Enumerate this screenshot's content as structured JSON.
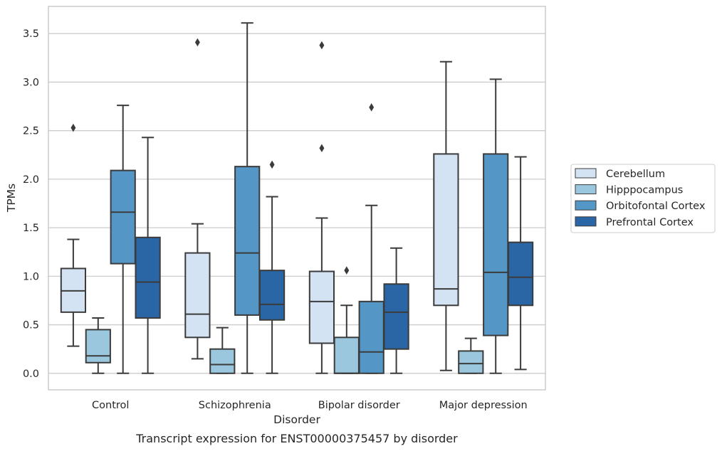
{
  "chart_data": {
    "type": "box",
    "caption": "Transcript expression for ENST00000375457 by disorder",
    "xlabel": "Disorder",
    "ylabel": "TPMs",
    "ylim": [
      -0.17,
      3.78
    ],
    "yticks": [
      "0.0",
      "0.5",
      "1.0",
      "1.5",
      "2.0",
      "2.5",
      "3.0",
      "3.5"
    ],
    "categories": [
      "Control",
      "Schizophrenia",
      "Bipolar disorder",
      "Major depression"
    ],
    "grid": "horizontal",
    "legend_position": "right",
    "series": [
      {
        "name": "Cerebellum",
        "color": "#d4e3f3",
        "boxes": [
          {
            "whisker_low": 0.28,
            "q1": 0.63,
            "median": 0.85,
            "q3": 1.08,
            "whisker_high": 1.38,
            "outliers": [
              2.53
            ]
          },
          {
            "whisker_low": 0.15,
            "q1": 0.37,
            "median": 0.61,
            "q3": 1.24,
            "whisker_high": 1.54,
            "outliers": [
              3.41
            ]
          },
          {
            "whisker_low": 0.0,
            "q1": 0.31,
            "median": 0.74,
            "q3": 1.05,
            "whisker_high": 1.6,
            "outliers": [
              2.32,
              3.38
            ]
          },
          {
            "whisker_low": 0.03,
            "q1": 0.7,
            "median": 0.87,
            "q3": 2.26,
            "whisker_high": 3.21,
            "outliers": []
          }
        ]
      },
      {
        "name": "Hipppocampus",
        "color": "#9ac7de",
        "boxes": [
          {
            "whisker_low": 0.0,
            "q1": 0.11,
            "median": 0.18,
            "q3": 0.45,
            "whisker_high": 0.57,
            "outliers": []
          },
          {
            "whisker_low": 0.0,
            "q1": 0.0,
            "median": 0.09,
            "q3": 0.25,
            "whisker_high": 0.47,
            "outliers": []
          },
          {
            "whisker_low": 0.0,
            "q1": 0.0,
            "median": 0.0,
            "q3": 0.37,
            "whisker_high": 0.7,
            "outliers": [
              1.06
            ]
          },
          {
            "whisker_low": 0.0,
            "q1": 0.0,
            "median": 0.1,
            "q3": 0.23,
            "whisker_high": 0.36,
            "outliers": []
          }
        ]
      },
      {
        "name": "Orbitofontal Cortex",
        "color": "#5497c6",
        "boxes": [
          {
            "whisker_low": 0.0,
            "q1": 1.13,
            "median": 1.66,
            "q3": 2.09,
            "whisker_high": 2.76,
            "outliers": []
          },
          {
            "whisker_low": 0.0,
            "q1": 0.6,
            "median": 1.24,
            "q3": 2.13,
            "whisker_high": 3.61,
            "outliers": []
          },
          {
            "whisker_low": 0.0,
            "q1": 0.0,
            "median": 0.22,
            "q3": 0.74,
            "whisker_high": 1.73,
            "outliers": [
              2.74
            ]
          },
          {
            "whisker_low": 0.0,
            "q1": 0.39,
            "median": 1.04,
            "q3": 2.26,
            "whisker_high": 3.03,
            "outliers": []
          }
        ]
      },
      {
        "name": "Prefrontal Cortex",
        "color": "#2a66a5",
        "boxes": [
          {
            "whisker_low": 0.0,
            "q1": 0.57,
            "median": 0.94,
            "q3": 1.4,
            "whisker_high": 2.43,
            "outliers": []
          },
          {
            "whisker_low": 0.0,
            "q1": 0.55,
            "median": 0.71,
            "q3": 1.06,
            "whisker_high": 1.82,
            "outliers": [
              2.15
            ]
          },
          {
            "whisker_low": 0.0,
            "q1": 0.25,
            "median": 0.63,
            "q3": 0.92,
            "whisker_high": 1.29,
            "outliers": []
          },
          {
            "whisker_low": 0.04,
            "q1": 0.7,
            "median": 0.99,
            "q3": 1.35,
            "whisker_high": 2.23,
            "outliers": []
          }
        ]
      }
    ]
  }
}
